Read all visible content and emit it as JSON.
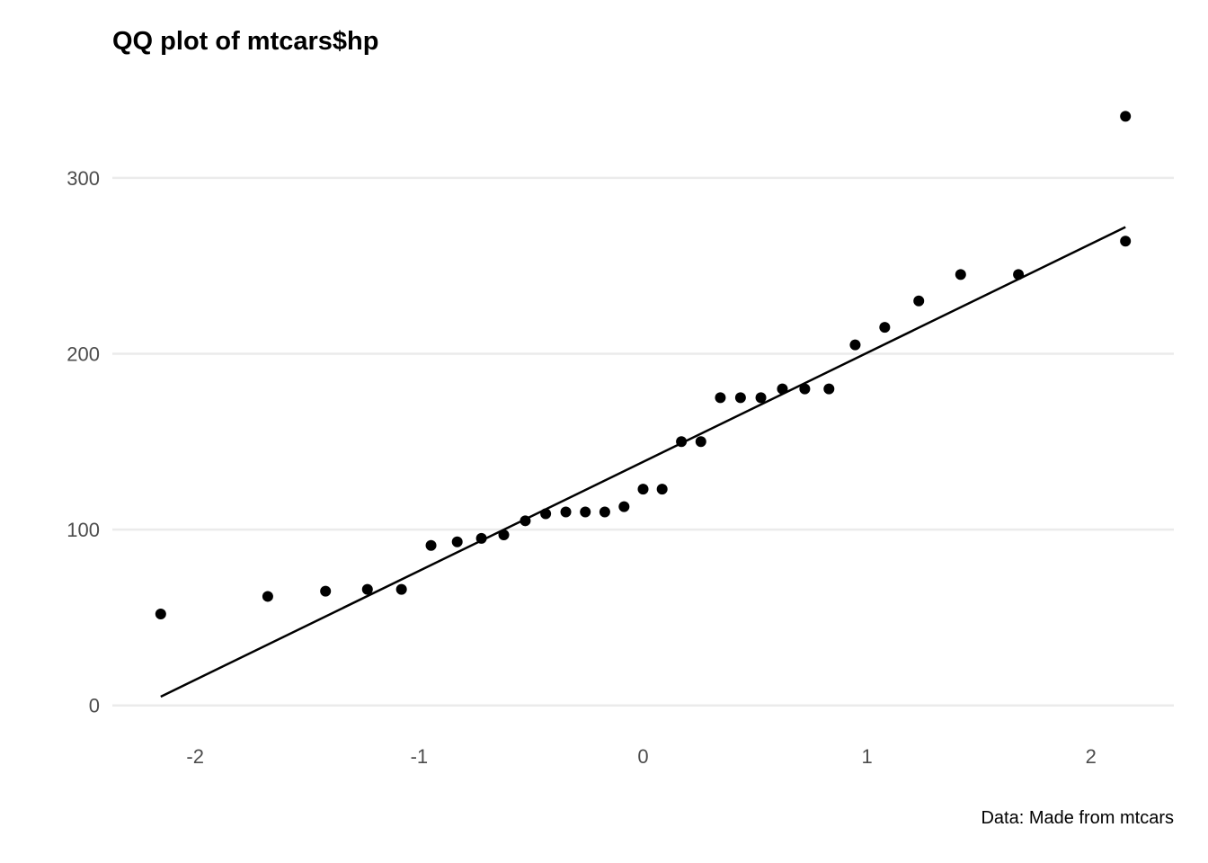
{
  "chart_data": {
    "type": "scatter",
    "title": "QQ plot of mtcars$hp",
    "caption": "Data: Made from mtcars",
    "xlabel": "",
    "ylabel": "",
    "xlim": [
      -2.37,
      2.37
    ],
    "ylim": [
      -17,
      350
    ],
    "x_ticks": [
      {
        "value": -2,
        "label": "-2"
      },
      {
        "value": -1,
        "label": "-1"
      },
      {
        "value": 0,
        "label": "0"
      },
      {
        "value": 1,
        "label": "1"
      },
      {
        "value": 2,
        "label": "2"
      }
    ],
    "y_ticks": [
      {
        "value": 0,
        "label": "0"
      },
      {
        "value": 100,
        "label": "100"
      },
      {
        "value": 200,
        "label": "200"
      },
      {
        "value": 300,
        "label": "300"
      }
    ],
    "grid": {
      "horizontal_major": true,
      "vertical": false
    },
    "colors": {
      "points": "#000000",
      "line": "#000000",
      "grid": "#ebebeb",
      "tick_text": "#4d4d4d"
    },
    "points": {
      "x": [
        -2.154,
        -1.676,
        -1.418,
        -1.231,
        -1.079,
        -0.947,
        -0.83,
        -0.722,
        -0.622,
        -0.526,
        -0.435,
        -0.345,
        -0.258,
        -0.171,
        -0.085,
        0.0,
        0.085,
        0.171,
        0.258,
        0.345,
        0.435,
        0.526,
        0.622,
        0.722,
        0.83,
        0.947,
        1.079,
        1.231,
        1.418,
        1.676,
        2.154
      ],
      "y": [
        52,
        62,
        65,
        66,
        66,
        91,
        93,
        95,
        97,
        105,
        109,
        110,
        110,
        110,
        113,
        123,
        123,
        150,
        150,
        175,
        175,
        175,
        180,
        180,
        180,
        205,
        215,
        230,
        245,
        245,
        264
      ]
    },
    "extra_points": [
      {
        "x": 2.154,
        "y": 335
      }
    ],
    "reference_line": {
      "x": [
        -2.154,
        2.154
      ],
      "y": [
        5,
        272
      ]
    }
  }
}
